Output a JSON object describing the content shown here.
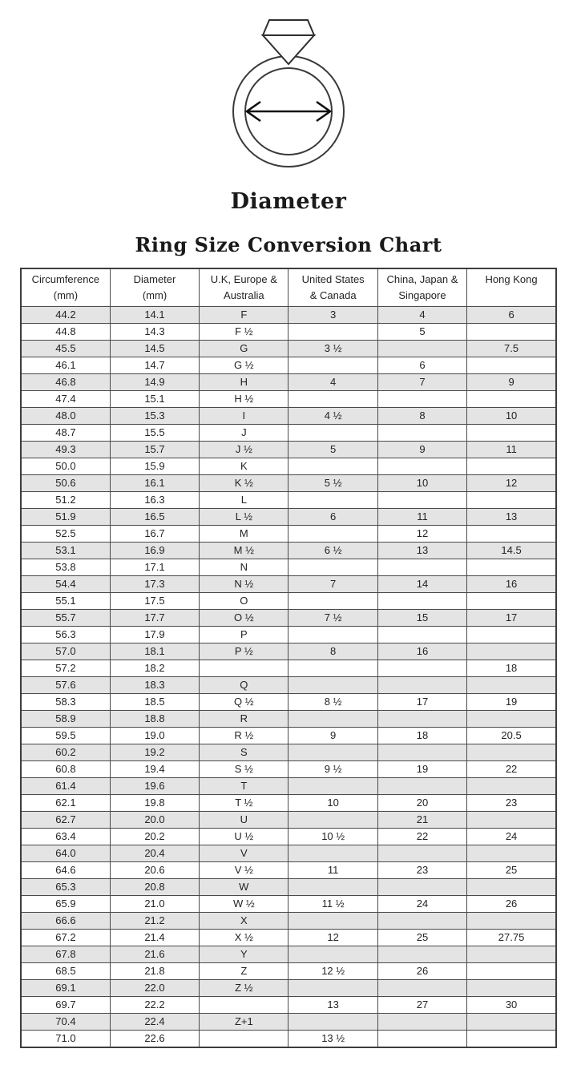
{
  "page": {
    "diameter_label": "Diameter",
    "title": "Ring Size Conversion Chart"
  },
  "illustration": {
    "name": "ring-diameter-illustration",
    "parts": [
      "diamond-icon",
      "ring-outer-circle",
      "ring-inner-circle",
      "diameter-arrow-icon"
    ]
  },
  "colors": {
    "row_shade": "#e4e4e4",
    "table_border": "#4a4a4a",
    "text": "#242424",
    "line_art": "#3a3a3a"
  },
  "chart_data": {
    "type": "table",
    "title": "Ring Size Conversion Chart",
    "illustration_label": "Diameter",
    "columns": [
      "Circumference (mm)",
      "Diameter (mm)",
      "U.K, Europe & Australia",
      "United States & Canada",
      "China, Japan & Singapore",
      "Hong Kong"
    ],
    "header_lines": [
      [
        "Circumference",
        "(mm)"
      ],
      [
        "Diameter",
        "(mm)"
      ],
      [
        "U.K, Europe &",
        "Australia"
      ],
      [
        "United States",
        "& Canada"
      ],
      [
        "China, Japan &",
        "Singapore"
      ],
      [
        "Hong Kong"
      ]
    ],
    "rows": [
      [
        "44.2",
        "14.1",
        "F",
        "3",
        "4",
        "6"
      ],
      [
        "44.8",
        "14.3",
        "F ½",
        "",
        "5",
        ""
      ],
      [
        "45.5",
        "14.5",
        "G",
        "3 ½",
        "",
        "7.5"
      ],
      [
        "46.1",
        "14.7",
        "G ½",
        "",
        "6",
        ""
      ],
      [
        "46.8",
        "14.9",
        "H",
        "4",
        "7",
        "9"
      ],
      [
        "47.4",
        "15.1",
        "H ½",
        "",
        "",
        ""
      ],
      [
        "48.0",
        "15.3",
        "I",
        "4 ½",
        "8",
        "10"
      ],
      [
        "48.7",
        "15.5",
        "J",
        "",
        "",
        ""
      ],
      [
        "49.3",
        "15.7",
        "J ½",
        "5",
        "9",
        "11"
      ],
      [
        "50.0",
        "15.9",
        "K",
        "",
        "",
        ""
      ],
      [
        "50.6",
        "16.1",
        "K ½",
        "5 ½",
        "10",
        "12"
      ],
      [
        "51.2",
        "16.3",
        "L",
        "",
        "",
        ""
      ],
      [
        "51.9",
        "16.5",
        "L ½",
        "6",
        "11",
        "13"
      ],
      [
        "52.5",
        "16.7",
        "M",
        "",
        "12",
        ""
      ],
      [
        "53.1",
        "16.9",
        "M ½",
        "6 ½",
        "13",
        "14.5"
      ],
      [
        "53.8",
        "17.1",
        "N",
        "",
        "",
        ""
      ],
      [
        "54.4",
        "17.3",
        "N ½",
        "7",
        "14",
        "16"
      ],
      [
        "55.1",
        "17.5",
        "O",
        "",
        "",
        ""
      ],
      [
        "55.7",
        "17.7",
        "O ½",
        "7 ½",
        "15",
        "17"
      ],
      [
        "56.3",
        "17.9",
        "P",
        "",
        "",
        ""
      ],
      [
        "57.0",
        "18.1",
        "P ½",
        "8",
        "16",
        ""
      ],
      [
        "57.2",
        "18.2",
        "",
        "",
        "",
        "18"
      ],
      [
        "57.6",
        "18.3",
        "Q",
        "",
        "",
        ""
      ],
      [
        "58.3",
        "18.5",
        "Q ½",
        "8 ½",
        "17",
        "19"
      ],
      [
        "58.9",
        "18.8",
        "R",
        "",
        "",
        ""
      ],
      [
        "59.5",
        "19.0",
        "R ½",
        "9",
        "18",
        "20.5"
      ],
      [
        "60.2",
        "19.2",
        "S",
        "",
        "",
        ""
      ],
      [
        "60.8",
        "19.4",
        "S ½",
        "9 ½",
        "19",
        "22"
      ],
      [
        "61.4",
        "19.6",
        "T",
        "",
        "",
        ""
      ],
      [
        "62.1",
        "19.8",
        "T ½",
        "10",
        "20",
        "23"
      ],
      [
        "62.7",
        "20.0",
        "U",
        "",
        "21",
        ""
      ],
      [
        "63.4",
        "20.2",
        "U ½",
        "10 ½",
        "22",
        "24"
      ],
      [
        "64.0",
        "20.4",
        "V",
        "",
        "",
        ""
      ],
      [
        "64.6",
        "20.6",
        "V ½",
        "11",
        "23",
        "25"
      ],
      [
        "65.3",
        "20.8",
        "W",
        "",
        "",
        ""
      ],
      [
        "65.9",
        "21.0",
        "W ½",
        "11 ½",
        "24",
        "26"
      ],
      [
        "66.6",
        "21.2",
        "X",
        "",
        "",
        ""
      ],
      [
        "67.2",
        "21.4",
        "X ½",
        "12",
        "25",
        "27.75"
      ],
      [
        "67.8",
        "21.6",
        "Y",
        "",
        "",
        ""
      ],
      [
        "68.5",
        "21.8",
        "Z",
        "12 ½",
        "26",
        ""
      ],
      [
        "69.1",
        "22.0",
        "Z ½",
        "",
        "",
        ""
      ],
      [
        "69.7",
        "22.2",
        "",
        "13",
        "27",
        "30"
      ],
      [
        "70.4",
        "22.4",
        "Z+1",
        "",
        "",
        ""
      ],
      [
        "71.0",
        "22.6",
        "",
        "13 ½",
        "",
        ""
      ]
    ]
  }
}
